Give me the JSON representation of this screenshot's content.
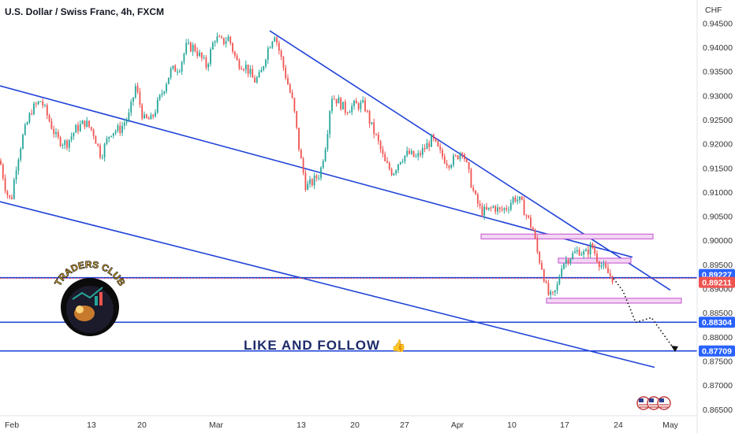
{
  "header": {
    "title": "U.S. Dollar / Swiss Franc, 4h, FXCM"
  },
  "axis": {
    "currency": "CHF"
  },
  "logo": {
    "text": "TRADERS CLUB"
  },
  "promo": {
    "text": "LIKE AND FOLLOW",
    "emoji": "👍"
  },
  "colors": {
    "up": "#26a69a",
    "down": "#ef5350",
    "trendline": "#2144d8",
    "zone_fill": "#f3d6f5",
    "zone_stroke": "#c24fc9",
    "badge_red": "#ef5350",
    "badge_blue": "#2962ff"
  },
  "price_badges": [
    {
      "value": "0.89227",
      "color": "blue"
    },
    {
      "value": "0.89211",
      "color": "red"
    },
    {
      "value": "0.88304",
      "color": "blue"
    },
    {
      "value": "0.87709",
      "color": "blue"
    }
  ],
  "chart_data": {
    "type": "candlestick",
    "title": "U.S. Dollar / Swiss Franc, 4h, FXCM",
    "ylabel": "CHF",
    "x_tick_labels": [
      "Feb",
      "13",
      "20",
      "Mar",
      "13",
      "20",
      "27",
      "Apr",
      "10",
      "17",
      "24",
      "May"
    ],
    "y_tick_labels": [
      "0.94500",
      "0.94000",
      "0.93500",
      "0.93000",
      "0.92500",
      "0.92000",
      "0.91500",
      "0.91000",
      "0.90500",
      "0.90000",
      "0.89500",
      "0.89000",
      "0.88500",
      "0.88000",
      "0.87500",
      "0.87000",
      "0.86500"
    ],
    "ylim": [
      0.864,
      0.9457
    ],
    "close_path": [
      [
        0,
        0.9165
      ],
      [
        8,
        0.91
      ],
      [
        14,
        0.908
      ],
      [
        20,
        0.915
      ],
      [
        28,
        0.921
      ],
      [
        40,
        0.927
      ],
      [
        52,
        0.929
      ],
      [
        62,
        0.925
      ],
      [
        72,
        0.921
      ],
      [
        84,
        0.92
      ],
      [
        96,
        0.923
      ],
      [
        108,
        0.9245
      ],
      [
        118,
        0.9225
      ],
      [
        128,
        0.9175
      ],
      [
        140,
        0.9225
      ],
      [
        152,
        0.923
      ],
      [
        164,
        0.926
      ],
      [
        172,
        0.932
      ],
      [
        182,
        0.925
      ],
      [
        192,
        0.925
      ],
      [
        204,
        0.93
      ],
      [
        216,
        0.935
      ],
      [
        228,
        0.936
      ],
      [
        236,
        0.94
      ],
      [
        246,
        0.94
      ],
      [
        254,
        0.938
      ],
      [
        262,
        0.936
      ],
      [
        272,
        0.942
      ],
      [
        282,
        0.941
      ],
      [
        290,
        0.942
      ],
      [
        300,
        0.937
      ],
      [
        312,
        0.936
      ],
      [
        322,
        0.933
      ],
      [
        330,
        0.934
      ],
      [
        338,
        0.939
      ],
      [
        348,
        0.943
      ],
      [
        356,
        0.938
      ],
      [
        364,
        0.933
      ],
      [
        372,
        0.928
      ],
      [
        380,
        0.918
      ],
      [
        388,
        0.911
      ],
      [
        396,
        0.912
      ],
      [
        406,
        0.914
      ],
      [
        414,
        0.921
      ],
      [
        420,
        0.93
      ],
      [
        428,
        0.929
      ],
      [
        438,
        0.927
      ],
      [
        450,
        0.928
      ],
      [
        462,
        0.928
      ],
      [
        470,
        0.924
      ],
      [
        478,
        0.921
      ],
      [
        488,
        0.916
      ],
      [
        498,
        0.914
      ],
      [
        508,
        0.917
      ],
      [
        518,
        0.918
      ],
      [
        528,
        0.917
      ],
      [
        538,
        0.919
      ],
      [
        548,
        0.921
      ],
      [
        558,
        0.918
      ],
      [
        568,
        0.916
      ],
      [
        578,
        0.917
      ],
      [
        586,
        0.919
      ],
      [
        594,
        0.914
      ],
      [
        602,
        0.909
      ],
      [
        610,
        0.906
      ],
      [
        618,
        0.906
      ],
      [
        626,
        0.907
      ],
      [
        634,
        0.906
      ],
      [
        644,
        0.907
      ],
      [
        652,
        0.909
      ],
      [
        660,
        0.908
      ],
      [
        668,
        0.905
      ],
      [
        676,
        0.902
      ],
      [
        682,
        0.897
      ],
      [
        688,
        0.894
      ],
      [
        694,
        0.889
      ],
      [
        700,
        0.888
      ],
      [
        706,
        0.89
      ],
      [
        712,
        0.895
      ],
      [
        718,
        0.896
      ],
      [
        726,
        0.897
      ],
      [
        734,
        0.898
      ],
      [
        742,
        0.897
      ],
      [
        750,
        0.899
      ],
      [
        758,
        0.896
      ],
      [
        766,
        0.894
      ],
      [
        772,
        0.893
      ],
      [
        778,
        0.8921
      ]
    ],
    "trendlines": [
      {
        "name": "descending-resistance",
        "points": [
          [
            342,
            0.9434
          ],
          [
            850,
            0.8897
          ]
        ]
      },
      {
        "name": "channel-upper",
        "points": [
          [
            0,
            0.932
          ],
          [
            802,
            0.8965
          ]
        ]
      },
      {
        "name": "channel-lower",
        "points": [
          [
            0,
            0.908
          ],
          [
            830,
            0.8737
          ]
        ]
      }
    ],
    "horizontal_levels": [
      0.89227,
      0.89211,
      0.88304,
      0.87709
    ],
    "zones": [
      {
        "name": "supply-zone-upper",
        "x": [
          610,
          828
        ],
        "y": [
          0.9003,
          0.9013
        ]
      },
      {
        "name": "supply-zone-mid",
        "x": [
          708,
          800
        ],
        "y": [
          0.8953,
          0.8963
        ]
      },
      {
        "name": "demand-zone",
        "x": [
          693,
          864
        ],
        "y": [
          0.887,
          0.888
        ]
      }
    ],
    "projection": [
      [
        778,
        0.8921
      ],
      [
        790,
        0.8895
      ],
      [
        806,
        0.883
      ],
      [
        826,
        0.884
      ],
      [
        856,
        0.8772
      ]
    ]
  }
}
